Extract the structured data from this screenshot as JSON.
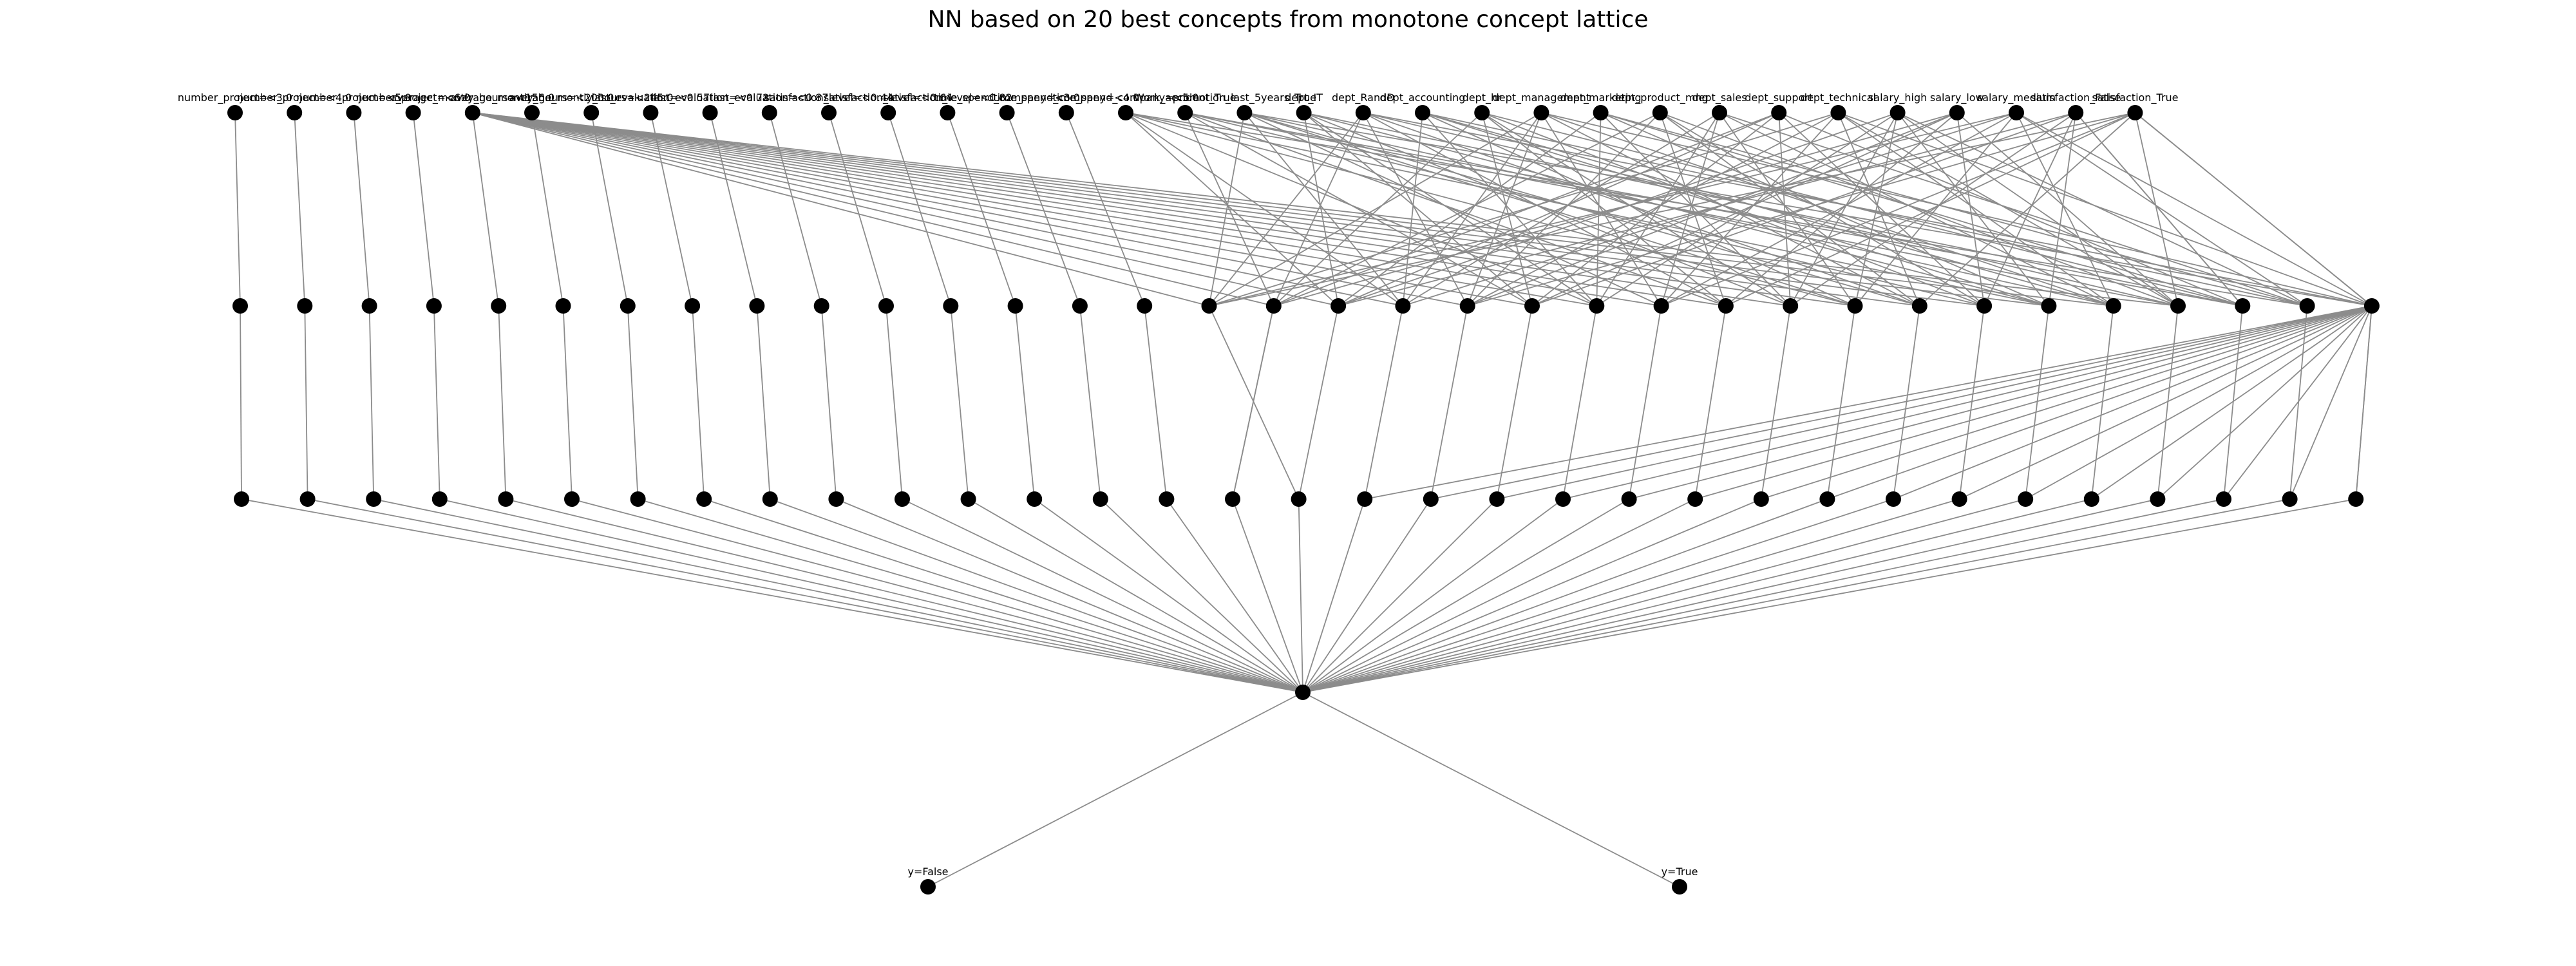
{
  "diagram": {
    "title": "NN based on 20 best concepts from monotone concept lattice",
    "input_labels": [
      "number_project=<3.0",
      "number_project=<4.0",
      "number_project=<5.0",
      "number_project=<6.0",
      "average_montly_hours=<156.0",
      "average_montly_hours=<200.0",
      "average_montly_hours=<245.0",
      "last_evaluation=<0.57",
      "last_evaluation=<0.72",
      "last_evaluation=<0.87",
      "satisfaction_level=<0.44",
      "satisfaction_level=<0.64",
      "satisfaction_level=<0.82",
      "time_spend_company=<3.0",
      "time_spend_company=<4.0",
      "time_spend_company=<5.0",
      "Work_accident_True",
      "promotion_last_5years_True",
      "dept_IT",
      "dept_RandD",
      "dept_accounting",
      "dept_hr",
      "dept_management",
      "dept_marketing",
      "dept_product_mng",
      "dept_sales",
      "dept_support",
      "dept_technical",
      "salary_high",
      "salary_low",
      "salary_medium",
      "satisfaction_False",
      "satisfaction_True"
    ],
    "output_labels": [
      "y=False",
      "y=True"
    ]
  }
}
